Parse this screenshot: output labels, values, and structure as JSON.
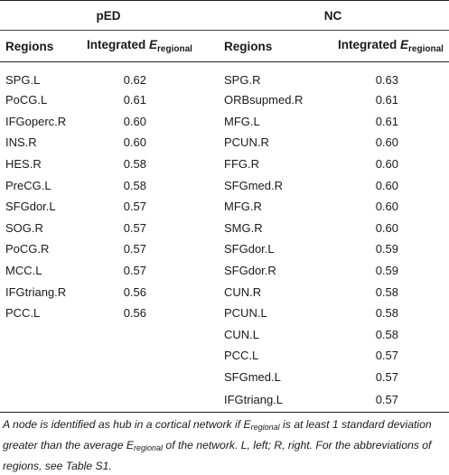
{
  "groups": {
    "ped": "pED",
    "nc": "NC"
  },
  "columns": {
    "regions_label": "Regions",
    "integrated_label": "Integrated ",
    "e_symbol": "E",
    "e_subscript": "regional"
  },
  "ped_rows": [
    {
      "region": "SPG.L",
      "value": "0.62"
    },
    {
      "region": "PoCG.L",
      "value": "0.61"
    },
    {
      "region": "IFGoperc.R",
      "value": "0.60"
    },
    {
      "region": "INS.R",
      "value": "0.60"
    },
    {
      "region": "HES.R",
      "value": "0.58"
    },
    {
      "region": "PreCG.L",
      "value": "0.58"
    },
    {
      "region": "SFGdor.L",
      "value": "0.57"
    },
    {
      "region": "SOG.R",
      "value": "0.57"
    },
    {
      "region": "PoCG.R",
      "value": "0.57"
    },
    {
      "region": "MCC.L",
      "value": "0.57"
    },
    {
      "region": "IFGtriang.R",
      "value": "0.56"
    },
    {
      "region": "PCC.L",
      "value": "0.56"
    }
  ],
  "nc_rows": [
    {
      "region": "SPG.R",
      "value": "0.63"
    },
    {
      "region": "ORBsupmed.R",
      "value": "0.61"
    },
    {
      "region": "MFG.L",
      "value": "0.61"
    },
    {
      "region": "PCUN.R",
      "value": "0.60"
    },
    {
      "region": "FFG.R",
      "value": "0.60"
    },
    {
      "region": "SFGmed.R",
      "value": "0.60"
    },
    {
      "region": "MFG.R",
      "value": "0.60"
    },
    {
      "region": "SMG.R",
      "value": "0.60"
    },
    {
      "region": "SFGdor.L",
      "value": "0.59"
    },
    {
      "region": "SFGdor.R",
      "value": "0.59"
    },
    {
      "region": "CUN.R",
      "value": "0.58"
    },
    {
      "region": "PCUN.L",
      "value": "0.58"
    },
    {
      "region": "CUN.L",
      "value": "0.58"
    },
    {
      "region": "PCC.L",
      "value": "0.57"
    },
    {
      "region": "SFGmed.L",
      "value": "0.57"
    },
    {
      "region": "IFGtriang.L",
      "value": "0.57"
    }
  ],
  "footnote": {
    "part1": "A node is identified as hub in a cortical network if ",
    "part2": " is at least 1 standard deviation greater than the average ",
    "part3": " of the network. L, left; R, right. For the abbreviations of regions, see Table S1."
  }
}
